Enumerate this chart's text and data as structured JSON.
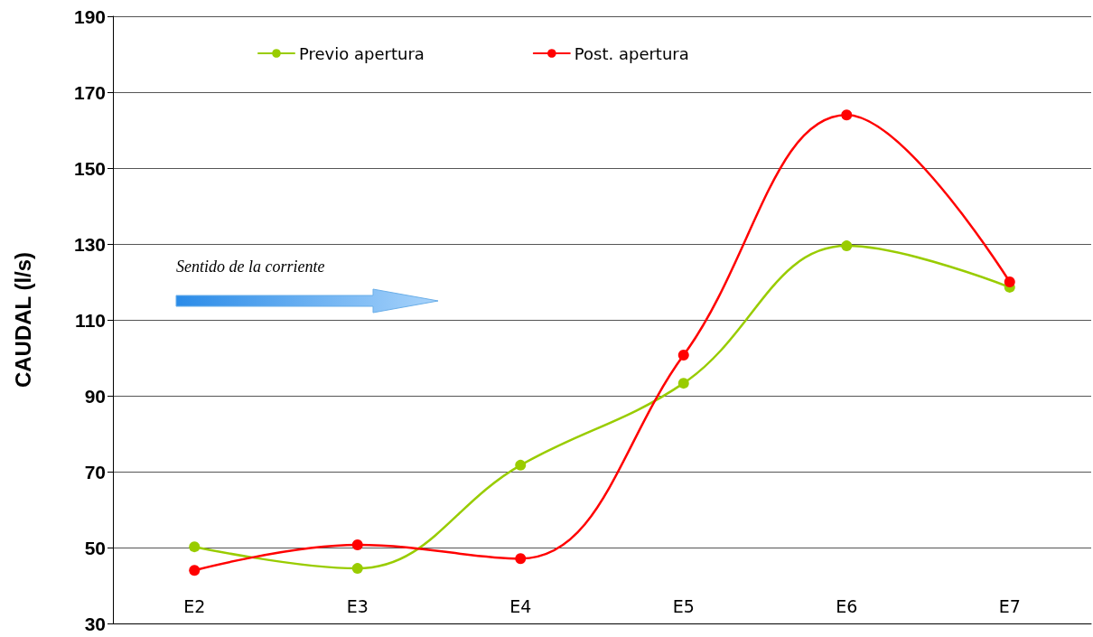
{
  "chart_data": {
    "type": "line",
    "ylabel": "CAUDAL (l/s)",
    "categories": [
      "E2",
      "E3",
      "E4",
      "E5",
      "E6",
      "E7"
    ],
    "series": [
      {
        "name": "Previo apertura",
        "color": "#99cc00",
        "values": [
          50.2,
          44.5,
          71.7,
          93.3,
          129.5,
          118.6
        ]
      },
      {
        "name": "Post. apertura",
        "color": "#ff0000",
        "values": [
          44.0,
          50.7,
          47.1,
          100.7,
          164.0,
          120.0
        ]
      }
    ],
    "ylim": [
      30,
      190
    ],
    "yticks": [
      30,
      50,
      70,
      90,
      110,
      130,
      150,
      170,
      190
    ],
    "grid": "y",
    "legend": "top",
    "marker": "circle",
    "line_style": "solid",
    "annotations": [
      "Sentido de la corriente"
    ]
  }
}
